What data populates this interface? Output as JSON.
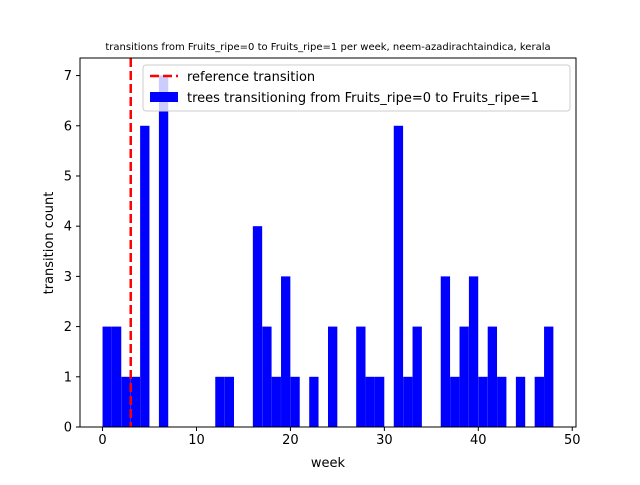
{
  "chart_data": {
    "type": "bar",
    "title": "transitions from Fruits_ripe=0 to Fruits_ripe=1 per week, neem-azadirachtaindica, kerala",
    "xlabel": "week",
    "ylabel": "transition count",
    "xlim": [
      -2.4,
      50.4
    ],
    "ylim": [
      0,
      7.35
    ],
    "xticks": [
      0,
      10,
      20,
      30,
      40,
      50
    ],
    "yticks": [
      0,
      1,
      2,
      3,
      4,
      5,
      6,
      7
    ],
    "bin_width": 0.96,
    "bar_color": "#0000ff",
    "reference_color": "#ff0000",
    "legend_position": "top-right",
    "series": [
      {
        "name": "trees transitioning from Fruits_ripe=0 to Fruits_ripe=1",
        "x": [
          0,
          1,
          2,
          3,
          4,
          6,
          12,
          13,
          16,
          17,
          18,
          19,
          20,
          22,
          24,
          27,
          28,
          29,
          31,
          32,
          33,
          36,
          37,
          38,
          39,
          40,
          41,
          42,
          44,
          46,
          47
        ],
        "values": [
          2,
          2,
          1,
          1,
          6,
          7,
          1,
          1,
          4,
          2,
          1,
          3,
          1,
          1,
          2,
          2,
          1,
          1,
          6,
          1,
          2,
          3,
          1,
          2,
          3,
          1,
          2,
          1,
          1,
          1,
          2
        ]
      }
    ],
    "reference": {
      "name": "reference transition",
      "x": 3
    }
  }
}
